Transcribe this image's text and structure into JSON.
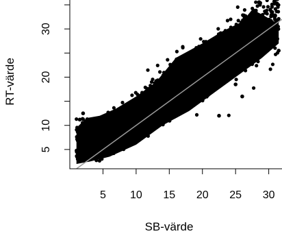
{
  "chart_data": {
    "type": "scatter",
    "title": "",
    "xlabel": "SB-värde",
    "ylabel": "RT-värde",
    "xlim": [
      0,
      32
    ],
    "ylim": [
      1,
      36
    ],
    "x_ticks": [
      5,
      10,
      15,
      20,
      25,
      30
    ],
    "x_tick_labels": [
      "5",
      "10",
      "15",
      "20",
      "25",
      "30"
    ],
    "y_ticks": [
      5,
      10,
      20,
      30
    ],
    "y_tick_labels": [
      "5",
      "10",
      "20",
      "30"
    ],
    "grid": false,
    "legend": "none",
    "point_color": "#000000",
    "reference_line": {
      "kind": "identity",
      "description": "y = x",
      "color": "#9a9a9a"
    },
    "point_cloud": {
      "trend": "positive linear, close to y = x",
      "x_range": [
        1,
        32
      ],
      "y_range": [
        3,
        36
      ]
    },
    "series": [
      {
        "values": [
          {
            "x": 1.2,
            "y": 3.0
          },
          {
            "x": 1.3,
            "y": 7.5
          },
          {
            "x": 1.5,
            "y": 11.2
          },
          {
            "x": 2.0,
            "y": 12.5
          },
          {
            "x": 2.3,
            "y": 4.2
          },
          {
            "x": 3.0,
            "y": 9.0
          },
          {
            "x": 4.0,
            "y": 10.5
          },
          {
            "x": 5.0,
            "y": 7.0
          },
          {
            "x": 6.0,
            "y": 9.5
          },
          {
            "x": 7.0,
            "y": 12.0
          },
          {
            "x": 8.5,
            "y": 14.0
          },
          {
            "x": 10.0,
            "y": 12.0
          },
          {
            "x": 12.0,
            "y": 15.5
          },
          {
            "x": 14.0,
            "y": 15.0
          },
          {
            "x": 16.0,
            "y": 17.0
          },
          {
            "x": 18.0,
            "y": 20.0
          },
          {
            "x": 20.0,
            "y": 21.0
          },
          {
            "x": 22.0,
            "y": 22.0
          },
          {
            "x": 22.5,
            "y": 12.0
          },
          {
            "x": 24.0,
            "y": 25.0
          },
          {
            "x": 25.0,
            "y": 18.5
          },
          {
            "x": 26.0,
            "y": 16.0
          },
          {
            "x": 27.0,
            "y": 30.0
          },
          {
            "x": 28.0,
            "y": 33.0
          },
          {
            "x": 28.5,
            "y": 35.5
          },
          {
            "x": 30.0,
            "y": 31.0
          },
          {
            "x": 31.0,
            "y": 28.0
          },
          {
            "x": 31.5,
            "y": 25.5
          }
        ]
      }
    ]
  }
}
